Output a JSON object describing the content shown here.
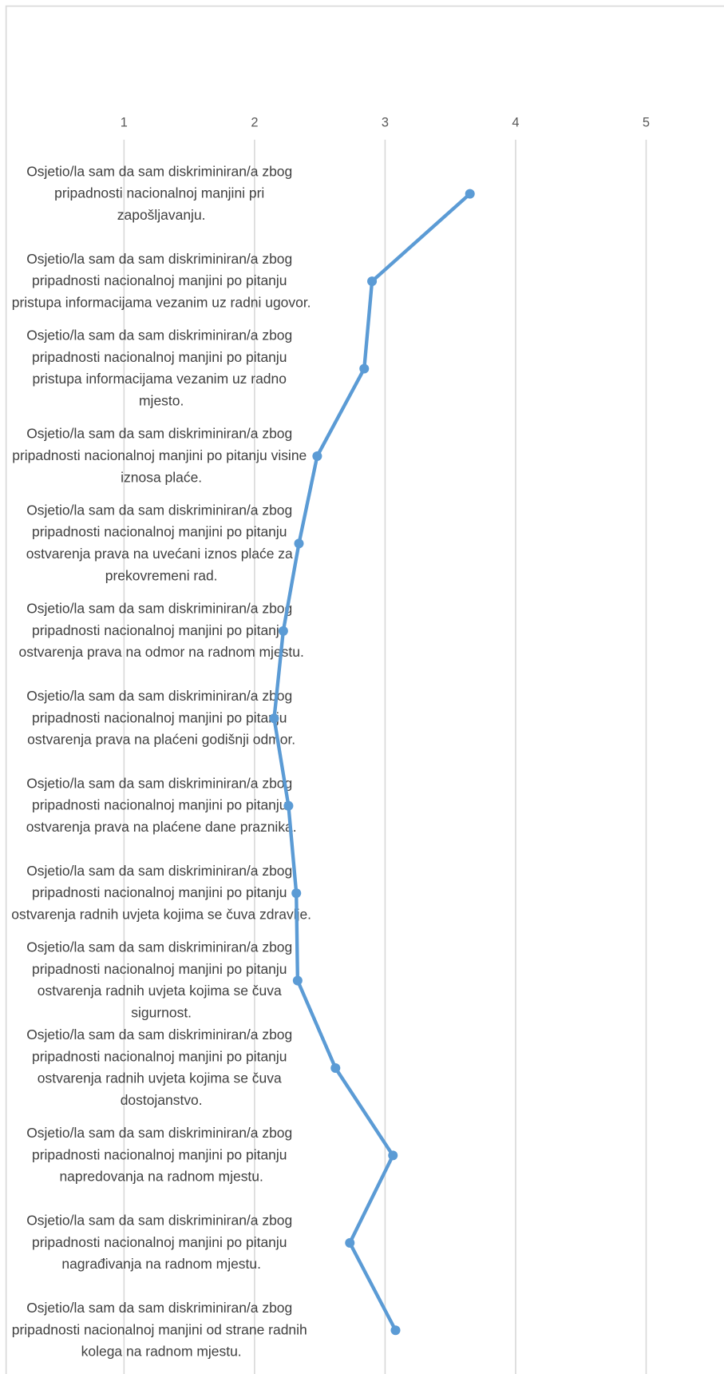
{
  "chart_data": {
    "type": "line",
    "orientation": "horizontal",
    "categories": [
      "Osjetio/la sam da sam diskriminiran/a zbog pripadnosti nacionalnoj manjini pri zapošljavanju.",
      "Osjetio/la sam da sam diskriminiran/a zbog pripadnosti nacionalnoj manjini po pitanju pristupa informacijama vezanim uz radni ugovor.",
      "Osjetio/la sam da sam diskriminiran/a zbog pripadnosti nacionalnoj manjini po pitanju pristupa informacijama vezanim uz radno mjesto.",
      "Osjetio/la sam da sam diskriminiran/a zbog pripadnosti nacionalnoj manjini po pitanju visine iznosa plaće.",
      "Osjetio/la sam da sam diskriminiran/a zbog pripadnosti nacionalnoj manjini po pitanju ostvarenja prava na uvećani iznos plaće za prekovremeni rad.",
      "Osjetio/la sam da sam diskriminiran/a zbog pripadnosti nacionalnoj manjini po pitanju ostvarenja prava na odmor na radnom mjestu.",
      "Osjetio/la sam da sam diskriminiran/a zbog pripadnosti nacionalnoj manjini po pitanju ostvarenja prava na plaćeni godišnji odmor.",
      "Osjetio/la sam da sam diskriminiran/a zbog pripadnosti nacionalnoj manjini po pitanju ostvarenja prava na plaćene dane praznika.",
      "Osjetio/la sam da sam diskriminiran/a zbog pripadnosti nacionalnoj manjini po pitanju ostvarenja radnih uvjeta kojima se čuva zdravlje.",
      "Osjetio/la sam da sam diskriminiran/a zbog pripadnosti nacionalnoj manjini po pitanju ostvarenja radnih uvjeta kojima se čuva sigurnost.",
      "Osjetio/la sam da sam diskriminiran/a zbog pripadnosti nacionalnoj manjini po pitanju ostvarenja radnih uvjeta kojima se čuva dostojanstvo.",
      "Osjetio/la sam da sam diskriminiran/a zbog pripadnosti nacionalnoj manjini po pitanju napredovanja na radnom mjestu.",
      "Osjetio/la sam da sam diskriminiran/a zbog pripadnosti nacionalnoj manjini po pitanju nagrađivanja na radnom mjestu.",
      "Osjetio/la sam da sam diskriminiran/a zbog pripadnosti nacionalnoj manjini od strane radnih kolega na radnom mjestu."
    ],
    "values": [
      3.65,
      2.9,
      2.84,
      2.48,
      2.34,
      2.22,
      2.15,
      2.26,
      2.32,
      2.33,
      2.62,
      3.06,
      2.73,
      3.08
    ],
    "color": "#5b9bd5",
    "xlim": [
      0.05,
      5.75
    ],
    "xticks": [
      1,
      2,
      3,
      4,
      5
    ],
    "grid": true
  }
}
